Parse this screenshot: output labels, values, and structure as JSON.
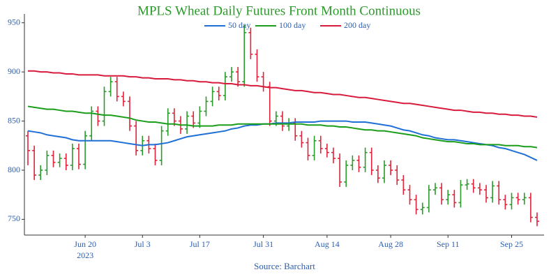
{
  "chart_data": {
    "type": "ohlc",
    "title": "MPLS Wheat Daily Futures Front Month Continuous",
    "source": "Source: Barchart",
    "up_color": "#2a9a2a",
    "down_color": "#e0223a",
    "x": [
      "2023-06-06",
      "2023-06-07",
      "2023-06-08",
      "2023-06-09",
      "2023-06-12",
      "2023-06-13",
      "2023-06-14",
      "2023-06-15",
      "2023-06-16",
      "2023-06-20",
      "2023-06-21",
      "2023-06-22",
      "2023-06-23",
      "2023-06-26",
      "2023-06-27",
      "2023-06-28",
      "2023-06-29",
      "2023-06-30",
      "2023-07-03",
      "2023-07-05",
      "2023-07-06",
      "2023-07-07",
      "2023-07-10",
      "2023-07-11",
      "2023-07-12",
      "2023-07-13",
      "2023-07-14",
      "2023-07-17",
      "2023-07-18",
      "2023-07-19",
      "2023-07-20",
      "2023-07-21",
      "2023-07-24",
      "2023-07-25",
      "2023-07-26",
      "2023-07-27",
      "2023-07-28",
      "2023-07-31",
      "2023-08-01",
      "2023-08-02",
      "2023-08-03",
      "2023-08-04",
      "2023-08-07",
      "2023-08-08",
      "2023-08-09",
      "2023-08-10",
      "2023-08-11",
      "2023-08-14",
      "2023-08-15",
      "2023-08-16",
      "2023-08-17",
      "2023-08-18",
      "2023-08-21",
      "2023-08-22",
      "2023-08-23",
      "2023-08-24",
      "2023-08-25",
      "2023-08-28",
      "2023-08-29",
      "2023-08-30",
      "2023-08-31",
      "2023-09-01",
      "2023-09-05",
      "2023-09-06",
      "2023-09-07",
      "2023-09-08",
      "2023-09-11",
      "2023-09-12",
      "2023-09-13",
      "2023-09-14",
      "2023-09-15",
      "2023-09-18",
      "2023-09-19",
      "2023-09-20",
      "2023-09-21",
      "2023-09-22",
      "2023-09-25",
      "2023-09-26",
      "2023-09-27",
      "2023-09-28",
      "2023-09-29"
    ],
    "open": [
      835,
      820,
      795,
      800,
      815,
      808,
      812,
      805,
      822,
      806,
      835,
      860,
      850,
      880,
      890,
      875,
      870,
      845,
      820,
      830,
      822,
      810,
      840,
      858,
      850,
      842,
      855,
      848,
      860,
      870,
      880,
      876,
      895,
      900,
      890,
      940,
      918,
      895,
      885,
      850,
      855,
      845,
      848,
      835,
      828,
      815,
      830,
      822,
      818,
      812,
      788,
      805,
      810,
      803,
      818,
      800,
      792,
      805,
      800,
      790,
      780,
      770,
      760,
      762,
      780,
      782,
      770,
      775,
      767,
      785,
      786,
      782,
      780,
      772,
      784,
      770,
      765,
      772,
      770,
      772,
      752
    ],
    "high": [
      840,
      825,
      805,
      820,
      820,
      817,
      817,
      827,
      827,
      840,
      865,
      865,
      885,
      895,
      895,
      880,
      875,
      850,
      835,
      835,
      827,
      845,
      863,
      863,
      855,
      860,
      860,
      865,
      875,
      885,
      885,
      900,
      905,
      905,
      948,
      945,
      923,
      900,
      890,
      860,
      860,
      853,
      853,
      840,
      833,
      835,
      835,
      827,
      823,
      817,
      810,
      815,
      815,
      823,
      823,
      805,
      810,
      810,
      805,
      795,
      785,
      775,
      767,
      785,
      787,
      787,
      780,
      780,
      790,
      791,
      791,
      787,
      785,
      789,
      789,
      775,
      777,
      777,
      777,
      777,
      757
    ],
    "low": [
      805,
      790,
      790,
      795,
      803,
      803,
      800,
      800,
      801,
      801,
      830,
      845,
      845,
      875,
      870,
      865,
      840,
      815,
      815,
      817,
      805,
      805,
      835,
      845,
      837,
      837,
      843,
      843,
      855,
      865,
      871,
      871,
      890,
      885,
      885,
      913,
      890,
      880,
      845,
      845,
      840,
      840,
      830,
      823,
      810,
      810,
      817,
      813,
      807,
      783,
      783,
      800,
      798,
      798,
      795,
      787,
      787,
      795,
      785,
      775,
      765,
      755,
      755,
      757,
      775,
      765,
      765,
      762,
      762,
      780,
      777,
      775,
      767,
      767,
      765,
      760,
      760,
      765,
      765,
      747,
      743
    ],
    "close": [
      820,
      795,
      800,
      815,
      808,
      812,
      805,
      822,
      806,
      835,
      860,
      850,
      880,
      890,
      875,
      870,
      845,
      820,
      830,
      822,
      810,
      840,
      858,
      850,
      842,
      855,
      848,
      860,
      870,
      880,
      876,
      895,
      900,
      890,
      940,
      918,
      895,
      885,
      850,
      855,
      845,
      848,
      835,
      828,
      815,
      830,
      822,
      818,
      812,
      788,
      805,
      810,
      803,
      818,
      800,
      792,
      805,
      800,
      790,
      780,
      770,
      760,
      762,
      780,
      782,
      770,
      775,
      767,
      785,
      786,
      782,
      780,
      772,
      784,
      770,
      765,
      772,
      770,
      772,
      752,
      748
    ],
    "series": [
      {
        "name": "50 day",
        "color": "#1f6fd6",
        "values": [
          840,
          839,
          838,
          836,
          835,
          834,
          833,
          831,
          830,
          830,
          830,
          830,
          830,
          830,
          829,
          828,
          827,
          826,
          825,
          826,
          826,
          827,
          828,
          830,
          832,
          834,
          835,
          836,
          837,
          838,
          839,
          840,
          842,
          843,
          845,
          846,
          846,
          847,
          847,
          848,
          848,
          848,
          849,
          849,
          849,
          849,
          850,
          850,
          850,
          850,
          850,
          849,
          849,
          849,
          848,
          847,
          846,
          845,
          843,
          841,
          840,
          838,
          836,
          835,
          833,
          832,
          831,
          831,
          830,
          829,
          828,
          827,
          826,
          825,
          823,
          822,
          820,
          818,
          816,
          813,
          810
        ]
      },
      {
        "name": "100 day",
        "color": "#1a9e1a",
        "values": [
          865,
          864,
          863,
          862,
          862,
          861,
          860,
          860,
          859,
          858,
          858,
          857,
          856,
          856,
          855,
          854,
          853,
          851,
          850,
          849,
          849,
          848,
          847,
          847,
          846,
          846,
          845,
          845,
          845,
          845,
          846,
          846,
          846,
          847,
          847,
          847,
          847,
          847,
          847,
          847,
          847,
          847,
          847,
          847,
          846,
          846,
          846,
          845,
          845,
          844,
          844,
          843,
          842,
          841,
          841,
          840,
          840,
          839,
          838,
          837,
          836,
          835,
          833,
          832,
          831,
          830,
          829,
          829,
          828,
          827,
          827,
          826,
          826,
          826,
          826,
          825,
          825,
          825,
          824,
          824,
          823
        ]
      },
      {
        "name": "200 day",
        "color": "#d81b3c",
        "values": [
          901,
          901,
          900,
          900,
          899,
          899,
          898,
          898,
          897,
          897,
          897,
          897,
          896,
          896,
          896,
          896,
          895,
          895,
          894,
          894,
          893,
          893,
          893,
          892,
          892,
          891,
          891,
          890,
          890,
          889,
          889,
          888,
          888,
          887,
          887,
          886,
          886,
          885,
          884,
          884,
          883,
          882,
          881,
          881,
          880,
          879,
          879,
          878,
          877,
          877,
          876,
          875,
          874,
          874,
          873,
          872,
          871,
          870,
          869,
          868,
          868,
          867,
          866,
          865,
          864,
          863,
          862,
          861,
          861,
          860,
          859,
          859,
          858,
          858,
          857,
          857,
          856,
          856,
          855,
          855,
          854
        ]
      }
    ],
    "xticks": [
      {
        "value": "2023-06-20",
        "label": [
          "Jun 20",
          "2023"
        ]
      },
      {
        "value": "2023-07-03",
        "label": "Jul 3"
      },
      {
        "value": "2023-07-17",
        "label": "Jul 17"
      },
      {
        "value": "2023-07-31",
        "label": "Jul 31"
      },
      {
        "value": "2023-08-14",
        "label": "Aug 14"
      },
      {
        "value": "2023-08-28",
        "label": "Aug 28"
      },
      {
        "value": "2023-09-11",
        "label": "Sep 11"
      },
      {
        "value": "2023-09-25",
        "label": "Sep 25"
      }
    ],
    "ylim": [
      734,
      959
    ],
    "yticks": [
      750,
      800,
      850,
      900,
      950
    ]
  }
}
